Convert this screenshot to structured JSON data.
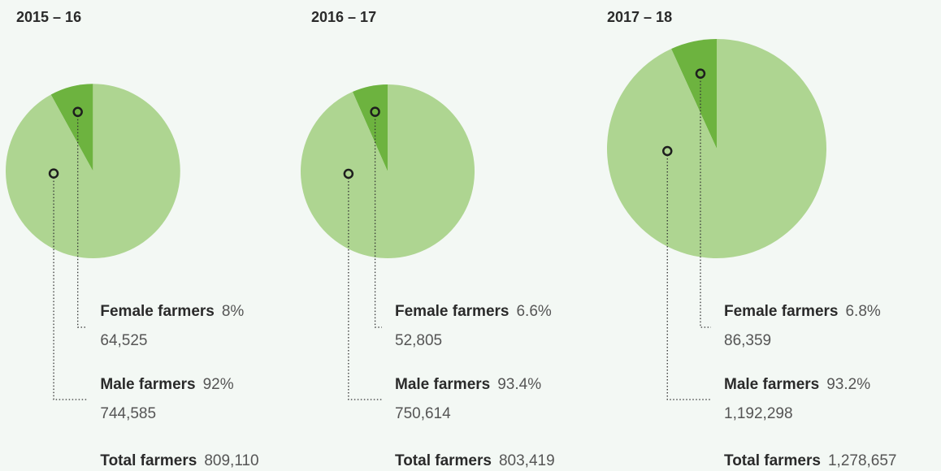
{
  "chart_data": [
    {
      "type": "pie",
      "title": "2015 – 16",
      "categories": [
        "Female farmers",
        "Male farmers"
      ],
      "values": [
        8,
        92
      ],
      "value_labels": [
        "8%",
        "92%"
      ],
      "counts": [
        64525,
        744585
      ],
      "count_labels": [
        "64,525",
        "744,585"
      ],
      "total_label": "Total farmers",
      "total": 809110,
      "total_value_label": "809,110",
      "colors": [
        "#6db33f",
        "#aed591"
      ]
    },
    {
      "type": "pie",
      "title": "2016 – 17",
      "categories": [
        "Female farmers",
        "Male farmers"
      ],
      "values": [
        6.6,
        93.4
      ],
      "value_labels": [
        "6.6%",
        "93.4%"
      ],
      "counts": [
        52805,
        750614
      ],
      "count_labels": [
        "52,805",
        "750,614"
      ],
      "total_label": "Total farmers",
      "total": 803419,
      "total_value_label": "803,419",
      "colors": [
        "#6db33f",
        "#aed591"
      ]
    },
    {
      "type": "pie",
      "title": "2017 – 18",
      "categories": [
        "Female farmers",
        "Male farmers"
      ],
      "values": [
        6.8,
        93.2
      ],
      "value_labels": [
        "6.8%",
        "93.2%"
      ],
      "counts": [
        86359,
        1192298
      ],
      "count_labels": [
        "86,359",
        "1,192,298"
      ],
      "total_label": "Total farmers",
      "total": 1278657,
      "total_value_label": "1,278,657",
      "colors": [
        "#6db33f",
        "#aed591"
      ]
    }
  ]
}
